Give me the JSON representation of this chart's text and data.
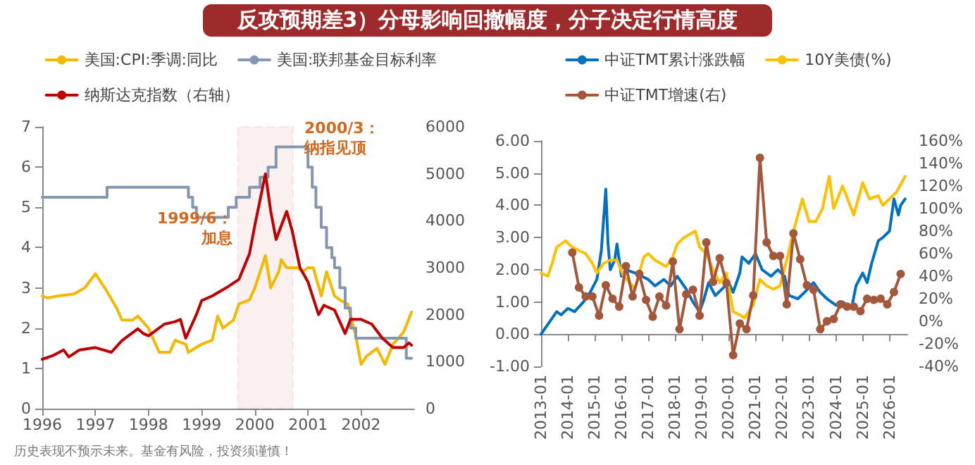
{
  "chart_data": [
    {
      "type": "line",
      "title": "反攻预期差3）分母影响回撤幅度，分子决定行情高度",
      "legend": "top",
      "grid": false,
      "xlim": [
        1996,
        2003
      ],
      "xticks": [
        1996,
        1997,
        1998,
        1999,
        2000,
        2001,
        2002
      ],
      "ylim": [
        0,
        7
      ],
      "yticks": [
        0,
        1,
        2,
        3,
        4,
        5,
        6,
        7
      ],
      "y2lim": [
        0,
        6000
      ],
      "y2ticks": [
        0,
        1000,
        2000,
        3000,
        4000,
        5000,
        6000
      ],
      "series": [
        {
          "name": "美国:CPI:季调:同比",
          "color": "#f5b800",
          "x": [
            1996,
            1996.1,
            1996.3,
            1996.6,
            1996.8,
            1997,
            1997.2,
            1997.4,
            1997.5,
            1997.7,
            1997.8,
            1998,
            1998.1,
            1998.2,
            1998.4,
            1998.5,
            1998.7,
            1998.75,
            1999,
            1999.2,
            1999.3,
            1999.4,
            1999.6,
            1999.7,
            1999.9,
            2000,
            2000.2,
            2000.3,
            2000.45,
            2000.5,
            2000.6,
            2000.8,
            2000.9,
            2001,
            2001.1,
            2001.25,
            2001.35,
            2001.5,
            2001.6,
            2001.75,
            2001.9,
            2002,
            2002.1,
            2002.3,
            2002.45,
            2002.6,
            2002.8,
            2002.95
          ],
          "values": [
            2.8,
            2.75,
            2.8,
            2.85,
            3.0,
            3.35,
            2.95,
            2.5,
            2.2,
            2.2,
            2.3,
            2.0,
            1.7,
            1.4,
            1.4,
            1.7,
            1.6,
            1.4,
            1.6,
            1.7,
            2.3,
            2.0,
            2.2,
            2.6,
            2.7,
            3.0,
            3.8,
            3.0,
            3.4,
            3.7,
            3.5,
            3.5,
            3.4,
            3.5,
            3.5,
            2.8,
            3.4,
            2.8,
            2.7,
            2.6,
            1.8,
            1.1,
            1.3,
            1.5,
            1.1,
            1.6,
            1.9,
            2.4
          ]
        },
        {
          "name": "美国:联邦基金目标利率",
          "type": "step",
          "color": "#8496b0",
          "x": [
            1996,
            1997.22,
            1998.75,
            1998.83,
            1998.9,
            1999.5,
            1999.65,
            1999.9,
            2000.1,
            2000.25,
            2000.4,
            2001,
            2001.08,
            2001.15,
            2001.25,
            2001.35,
            2001.45,
            2001.5,
            2001.6,
            2001.7,
            2001.8,
            2001.9,
            2002.85,
            2002.95
          ],
          "values": [
            5.25,
            5.5,
            5.25,
            5.0,
            4.75,
            5.0,
            5.25,
            5.5,
            5.75,
            6.0,
            6.5,
            6.0,
            5.5,
            5.0,
            4.5,
            4.0,
            3.75,
            3.5,
            3.0,
            2.5,
            2.0,
            1.75,
            1.25,
            1.25
          ]
        },
        {
          "name": "纳斯达克指数（右轴）",
          "axis": "y2",
          "color": "#c00000",
          "x": [
            1996,
            1996.2,
            1996.4,
            1996.5,
            1996.7,
            1997,
            1997.3,
            1997.5,
            1997.8,
            1997.9,
            1998,
            1998.3,
            1998.5,
            1998.6,
            1998.7,
            1998.9,
            1999,
            1999.2,
            1999.5,
            1999.7,
            1999.9,
            2000,
            2000.2,
            2000.3,
            2000.4,
            2000.5,
            2000.6,
            2000.7,
            2000.85,
            2001,
            2001.2,
            2001.3,
            2001.5,
            2001.7,
            2001.8,
            2002,
            2002.2,
            2002.4,
            2002.6,
            2002.8,
            2002.9,
            2002.95
          ],
          "values": [
            1050,
            1130,
            1250,
            1100,
            1250,
            1300,
            1200,
            1450,
            1700,
            1600,
            1550,
            1800,
            1850,
            1900,
            1500,
            2000,
            2300,
            2400,
            2600,
            2750,
            3300,
            3900,
            5000,
            4200,
            3600,
            3900,
            4200,
            3800,
            3000,
            2700,
            2000,
            2200,
            2100,
            1600,
            1900,
            1900,
            1800,
            1500,
            1300,
            1300,
            1400,
            1350
          ]
        }
      ],
      "bands": [
        {
          "axis": "x",
          "from": 1999.68,
          "to": 2000.72,
          "color": "#c00000"
        }
      ],
      "annotations": [
        "1999/6：加息",
        "2000/3：纳指见顶",
        "历史表现不预示未来。基金有风险，投资须谨慎！"
      ]
    },
    {
      "type": "line",
      "legend": "top",
      "grid": false,
      "xlim": [
        "2013-01",
        "2026-09"
      ],
      "xticks": [
        "2013-01",
        "2014-01",
        "2015-01",
        "2016-01",
        "2017-01",
        "2018-01",
        "2019-01",
        "2020-01",
        "2021-01",
        "2022-01",
        "2023-01",
        "2024-01",
        "2025-01",
        "2026-01"
      ],
      "ylim": [
        -1,
        6
      ],
      "yticks": [
        {
          "value": -1,
          "label": "-1.00"
        },
        {
          "value": 0,
          "label": "0.00"
        },
        {
          "value": 1,
          "label": "1.00"
        },
        {
          "value": 2,
          "label": "2.00"
        },
        {
          "value": 3,
          "label": "3.00"
        },
        {
          "value": 4,
          "label": "4.00"
        },
        {
          "value": 5,
          "label": "5.00"
        },
        {
          "value": 6,
          "label": "6.00"
        }
      ],
      "y2lim": [
        -40,
        160
      ],
      "y2ticks": [
        {
          "value": -40,
          "label": "-40%"
        },
        {
          "value": -20,
          "label": "-20%"
        },
        {
          "value": 0,
          "label": "0%"
        },
        {
          "value": 20,
          "label": "20%"
        },
        {
          "value": 40,
          "label": "40%"
        },
        {
          "value": 60,
          "label": "60%"
        },
        {
          "value": 80,
          "label": "80%"
        },
        {
          "value": 100,
          "label": "100%"
        },
        {
          "value": 120,
          "label": "120%"
        },
        {
          "value": 140,
          "label": "140%"
        },
        {
          "value": 160,
          "label": "160%"
        }
      ],
      "series": [
        {
          "name": "中证TMT累计涨跌幅",
          "color": "#0070c0",
          "x": [
            "2013-01",
            "2013-04",
            "2013-08",
            "2013-10",
            "2014-01",
            "2014-04",
            "2014-08",
            "2014-11",
            "2015-02",
            "2015-04",
            "2015-06",
            "2015-07",
            "2015-08",
            "2015-10",
            "2015-11",
            "2016-01",
            "2016-03",
            "2016-07",
            "2016-10",
            "2017-01",
            "2017-04",
            "2017-08",
            "2017-11",
            "2018-02",
            "2018-06",
            "2018-09",
            "2018-12",
            "2019-02",
            "2019-04",
            "2019-07",
            "2019-10",
            "2020-01",
            "2020-03",
            "2020-06",
            "2020-07",
            "2020-10",
            "2021-01",
            "2021-04",
            "2021-08",
            "2021-11",
            "2022-02",
            "2022-04",
            "2022-08",
            "2022-11",
            "2023-03",
            "2023-06",
            "2023-09",
            "2024-01",
            "2024-04",
            "2024-08",
            "2024-10",
            "2025-01",
            "2025-03",
            "2025-05",
            "2025-08",
            "2025-10",
            "2026-01",
            "2026-03",
            "2026-05",
            "2026-06",
            "2026-08"
          ],
          "values": [
            0.0,
            0.3,
            0.7,
            0.6,
            0.8,
            0.7,
            1.0,
            1.3,
            1.7,
            2.6,
            4.5,
            2.8,
            2.0,
            2.3,
            2.8,
            1.8,
            2.0,
            1.9,
            1.8,
            1.7,
            1.5,
            1.7,
            1.5,
            1.8,
            1.4,
            1.0,
            0.7,
            1.1,
            1.6,
            1.2,
            1.4,
            1.6,
            1.3,
            1.9,
            2.4,
            2.2,
            2.5,
            2.0,
            1.8,
            2.0,
            1.8,
            1.2,
            1.1,
            1.3,
            1.6,
            1.3,
            1.1,
            0.9,
            1.0,
            0.8,
            1.5,
            1.9,
            1.6,
            2.2,
            2.9,
            3.0,
            3.2,
            4.2,
            3.7,
            4.0,
            4.2
          ]
        },
        {
          "name": "10Y美债(%)",
          "color": "#ffc000",
          "x": [
            "2013-01",
            "2013-04",
            "2013-06",
            "2013-08",
            "2013-12",
            "2014-03",
            "2014-06",
            "2014-09",
            "2014-12",
            "2015-02",
            "2015-05",
            "2015-08",
            "2015-11",
            "2016-02",
            "2016-06",
            "2016-07",
            "2016-11",
            "2017-01",
            "2017-04",
            "2017-09",
            "2017-12",
            "2018-02",
            "2018-05",
            "2018-10",
            "2018-12",
            "2019-03",
            "2019-06",
            "2019-09",
            "2019-12",
            "2020-03",
            "2020-06",
            "2020-08",
            "2020-12",
            "2021-03",
            "2021-06",
            "2021-09",
            "2021-12",
            "2022-03",
            "2022-06",
            "2022-10",
            "2023-01",
            "2023-04",
            "2023-07",
            "2023-10",
            "2023-12",
            "2024-04",
            "2024-09",
            "2025-01",
            "2025-04",
            "2025-08",
            "2025-10",
            "2026-01",
            "2026-04",
            "2026-08"
          ],
          "values": [
            1.9,
            1.8,
            2.2,
            2.7,
            2.9,
            2.7,
            2.6,
            2.5,
            2.2,
            1.9,
            2.2,
            2.3,
            2.3,
            1.8,
            1.5,
            1.4,
            2.4,
            2.5,
            2.3,
            2.1,
            2.4,
            2.8,
            3.0,
            3.2,
            2.7,
            2.5,
            2.0,
            1.6,
            1.9,
            0.7,
            0.6,
            0.5,
            0.9,
            1.7,
            1.5,
            1.4,
            1.5,
            2.3,
            3.2,
            4.2,
            3.5,
            3.5,
            3.9,
            4.9,
            3.9,
            4.6,
            3.7,
            4.7,
            4.2,
            4.3,
            4.0,
            4.2,
            4.4,
            4.9
          ]
        },
        {
          "name": "中证TMT增速(右)",
          "axis": "y2",
          "marker": "circle",
          "color": "#a5573b",
          "x": [
            "2014-03",
            "2014-06",
            "2014-09",
            "2014-12",
            "2015-03",
            "2015-06",
            "2015-09",
            "2015-12",
            "2016-03",
            "2016-06",
            "2016-09",
            "2016-12",
            "2017-03",
            "2017-06",
            "2017-09",
            "2017-12",
            "2018-03",
            "2018-06",
            "2018-09",
            "2018-12",
            "2019-03",
            "2019-06",
            "2019-09",
            "2019-12",
            "2020-03",
            "2020-06",
            "2020-09",
            "2020-12",
            "2021-03",
            "2021-06",
            "2021-09",
            "2021-12",
            "2022-03",
            "2022-06",
            "2022-09",
            "2022-12",
            "2023-03",
            "2023-06",
            "2023-09",
            "2023-12",
            "2024-03",
            "2024-06",
            "2024-09",
            "2024-12",
            "2025-03",
            "2025-06",
            "2025-09",
            "2025-12",
            "2026-03",
            "2026-06"
          ],
          "values": [
            61,
            30,
            22,
            22,
            5,
            32,
            20,
            13,
            49,
            22,
            42,
            19,
            4,
            22,
            14,
            53,
            -7,
            24,
            28,
            5,
            70,
            35,
            56,
            34,
            -30,
            -2,
            -7,
            23,
            145,
            70,
            58,
            58,
            15,
            78,
            55,
            32,
            28,
            -7,
            0,
            2,
            15,
            13,
            13,
            9,
            20,
            19,
            20,
            15,
            26,
            42
          ]
        }
      ]
    }
  ]
}
